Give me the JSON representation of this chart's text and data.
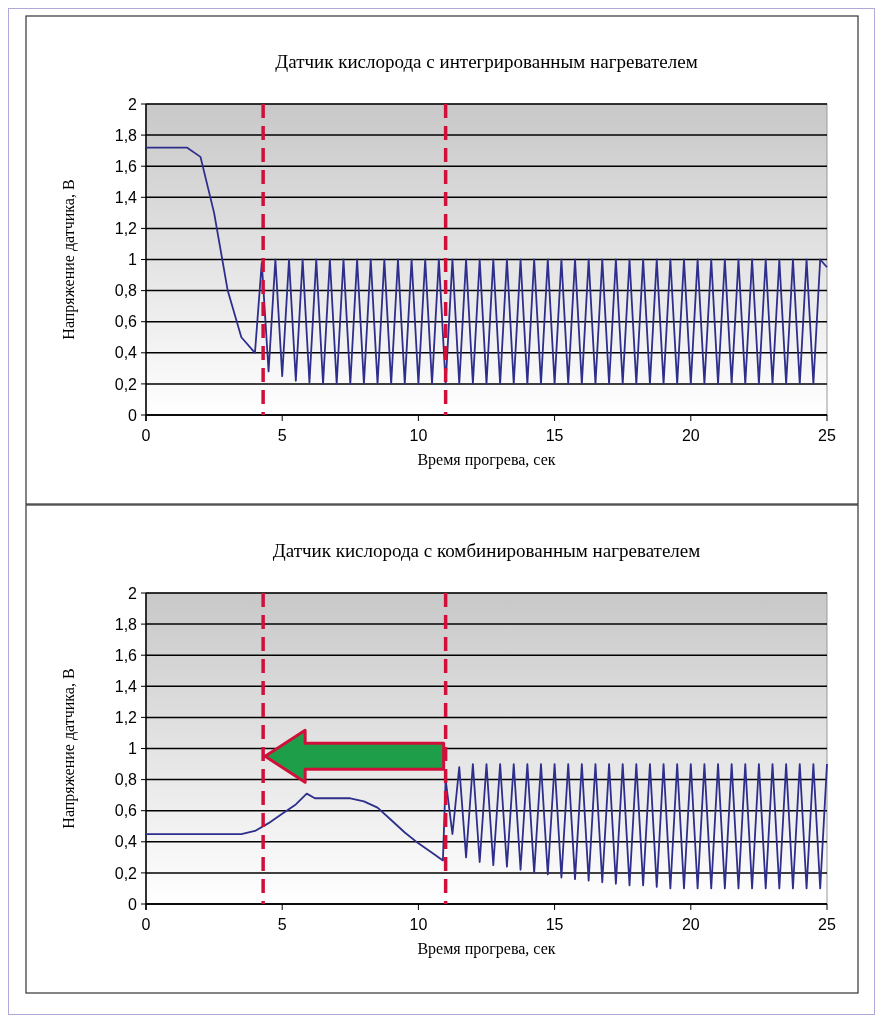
{
  "chart_data": [
    {
      "type": "line",
      "title": "Датчик кислорода с интегрированным нагревателем",
      "xlabel": "Время прогрева, сек",
      "ylabel": "Напряжение датчика, В",
      "x": [
        0,
        1.5,
        2,
        2.5,
        3,
        3.5,
        4,
        4.25,
        4.5,
        4.75,
        5,
        5.25,
        5.5,
        5.75,
        6,
        6.25,
        6.5,
        6.75,
        7,
        7.25,
        7.5,
        7.75,
        8,
        8.25,
        8.5,
        8.75,
        9,
        9.25,
        9.5,
        9.75,
        10,
        10.25,
        10.5,
        10.75,
        11,
        11.25,
        11.5,
        11.75,
        12,
        12.25,
        12.5,
        12.75,
        13,
        13.25,
        13.5,
        13.75,
        14,
        14.25,
        14.5,
        14.75,
        15,
        15.25,
        15.5,
        15.75,
        16,
        16.25,
        16.5,
        16.75,
        17,
        17.25,
        17.5,
        17.75,
        18,
        18.25,
        18.5,
        18.75,
        19,
        19.25,
        19.5,
        19.75,
        20,
        20.25,
        20.5,
        20.75,
        21,
        21.25,
        21.5,
        21.75,
        22,
        22.25,
        22.5,
        22.75,
        23,
        23.25,
        23.5,
        23.75,
        24,
        24.25,
        24.5,
        24.75,
        25
      ],
      "series": [
        {
          "color": "#2e2e8c",
          "values": [
            1.72,
            1.72,
            1.66,
            1.3,
            0.8,
            0.5,
            0.4,
            0.98,
            0.28,
            1,
            0.25,
            1,
            0.22,
            1,
            0.21,
            1,
            0.2,
            1,
            0.2,
            1,
            0.2,
            1,
            0.2,
            1,
            0.2,
            1,
            0.2,
            1,
            0.2,
            1,
            0.2,
            1,
            0.2,
            1,
            0.2,
            1,
            0.2,
            1,
            0.2,
            1,
            0.2,
            1,
            0.2,
            1,
            0.2,
            1,
            0.2,
            1,
            0.2,
            1,
            0.2,
            1,
            0.2,
            1,
            0.2,
            1,
            0.2,
            1,
            0.2,
            1,
            0.2,
            1,
            0.2,
            1,
            0.2,
            1,
            0.2,
            1,
            0.2,
            1,
            0.2,
            1,
            0.2,
            1,
            0.2,
            1,
            0.2,
            1,
            0.2,
            1,
            0.2,
            1,
            0.2,
            1,
            0.2,
            1,
            0.2,
            1,
            0.2,
            1,
            0.95
          ]
        }
      ],
      "xlim": [
        0,
        25
      ],
      "ylim": [
        0,
        2
      ],
      "xticks": [
        0,
        5,
        10,
        15,
        20,
        25
      ],
      "yticks": [
        0,
        {
          "value": 0.2,
          "label": "0,2"
        },
        {
          "value": 0.4,
          "label": "0,4"
        },
        {
          "value": 0.6,
          "label": "0,6"
        },
        {
          "value": 0.8,
          "label": "0,8"
        },
        1,
        {
          "value": 1.2,
          "label": "1,2"
        },
        {
          "value": 1.4,
          "label": "1,4"
        },
        {
          "value": 1.6,
          "label": "1,6"
        },
        {
          "value": 1.8,
          "label": "1,8"
        },
        2
      ],
      "grid": "y",
      "ref_lines": [
        {
          "axis": "x",
          "value": 4.3,
          "color": "#d0103a",
          "line_style": "dashed"
        },
        {
          "axis": "x",
          "value": 11,
          "color": "#d0103a",
          "line_style": "dashed"
        }
      ]
    },
    {
      "type": "line",
      "title": "Датчик кислорода с комбинированным нагревателем",
      "xlabel": "Время прогрева, сек",
      "ylabel": "Напряжение датчика, В",
      "x": [
        0,
        3.5,
        4,
        4.5,
        5,
        5.5,
        5.9,
        6.2,
        7,
        7.5,
        8,
        8.5,
        9,
        9.5,
        10,
        10.5,
        10.9,
        11,
        11.25,
        11.5,
        11.75,
        12,
        12.25,
        12.5,
        12.75,
        13,
        13.25,
        13.5,
        13.75,
        14,
        14.25,
        14.5,
        14.75,
        15,
        15.25,
        15.5,
        15.75,
        16,
        16.25,
        16.5,
        16.75,
        17,
        17.25,
        17.5,
        17.75,
        18,
        18.25,
        18.5,
        18.75,
        19,
        19.25,
        19.5,
        19.75,
        20,
        20.25,
        20.5,
        20.75,
        21,
        21.25,
        21.5,
        21.75,
        22,
        22.25,
        22.5,
        22.75,
        23,
        23.25,
        23.5,
        23.75,
        24,
        24.25,
        24.5,
        24.75,
        25
      ],
      "series": [
        {
          "color": "#2e2e8c",
          "values": [
            0.45,
            0.45,
            0.47,
            0.52,
            0.58,
            0.64,
            0.71,
            0.68,
            0.68,
            0.68,
            0.66,
            0.62,
            0.54,
            0.46,
            0.39,
            0.33,
            0.28,
            0.8,
            0.45,
            0.88,
            0.3,
            0.9,
            0.27,
            0.9,
            0.25,
            0.9,
            0.24,
            0.9,
            0.22,
            0.9,
            0.2,
            0.9,
            0.19,
            0.9,
            0.17,
            0.9,
            0.16,
            0.9,
            0.15,
            0.9,
            0.14,
            0.9,
            0.13,
            0.9,
            0.12,
            0.9,
            0.12,
            0.9,
            0.11,
            0.9,
            0.1,
            0.9,
            0.1,
            0.9,
            0.1,
            0.9,
            0.1,
            0.9,
            0.1,
            0.9,
            0.1,
            0.9,
            0.1,
            0.9,
            0.1,
            0.9,
            0.1,
            0.9,
            0.1,
            0.9,
            0.1,
            0.9,
            0.1,
            0.9
          ]
        }
      ],
      "xlim": [
        0,
        25
      ],
      "ylim": [
        0,
        2
      ],
      "xticks": [
        0,
        5,
        10,
        15,
        20,
        25
      ],
      "yticks": [
        0,
        {
          "value": 0.2,
          "label": "0,2"
        },
        {
          "value": 0.4,
          "label": "0,4"
        },
        {
          "value": 0.6,
          "label": "0,6"
        },
        {
          "value": 0.8,
          "label": "0,8"
        },
        1,
        {
          "value": 1.2,
          "label": "1,2"
        },
        {
          "value": 1.4,
          "label": "1,4"
        },
        {
          "value": 1.6,
          "label": "1,6"
        },
        {
          "value": 1.8,
          "label": "1,8"
        },
        2
      ],
      "grid": "y",
      "ref_lines": [
        {
          "axis": "x",
          "value": 4.3,
          "color": "#d0103a",
          "line_style": "dashed"
        },
        {
          "axis": "x",
          "value": 11,
          "color": "#d0103a",
          "line_style": "dashed"
        }
      ]
    }
  ]
}
